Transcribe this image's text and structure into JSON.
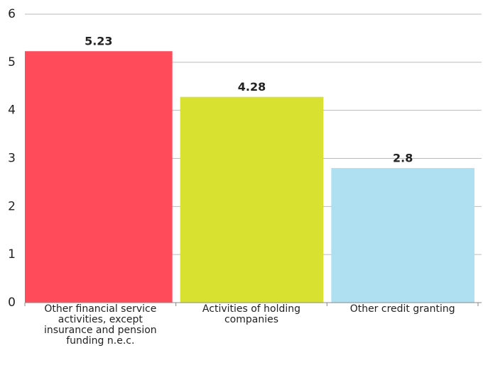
{
  "chart_data": {
    "type": "bar",
    "categories": [
      "Other financial service activities, except insurance and pension funding n.e.c.",
      "Activities of holding companies",
      "Other credit granting"
    ],
    "values": [
      5.23,
      4.28,
      2.8
    ],
    "colors": [
      "#ff4b5a",
      "#d8e030",
      "#aee0f2"
    ],
    "ylim": [
      0,
      6
    ],
    "yticks": [
      0,
      1,
      2,
      3,
      4,
      5,
      6
    ],
    "grid": true
  }
}
